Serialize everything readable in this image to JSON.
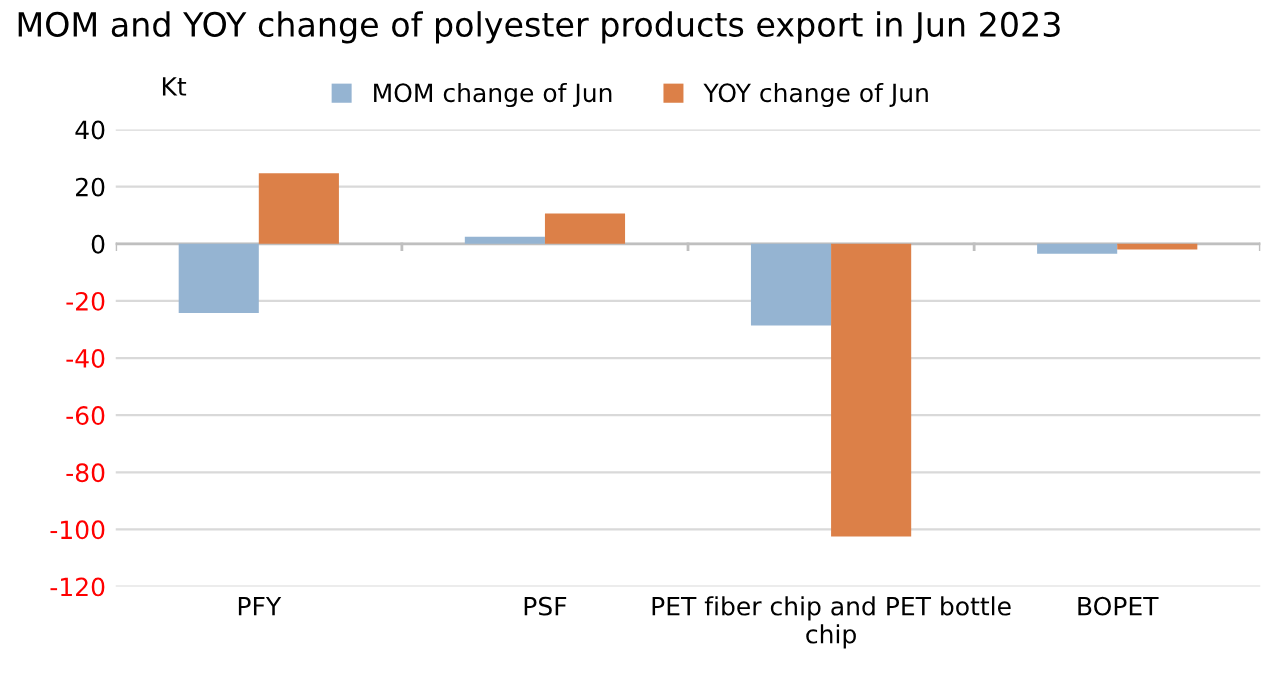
{
  "chart_data": {
    "type": "bar",
    "title": "MOM and YOY change of polyester products export in Jun 2023",
    "ylabel": "Kt",
    "categories": [
      "PFY",
      "PSF",
      "PET fiber chip and PET bottle chip",
      "BOPET"
    ],
    "series": [
      {
        "name": "MOM change of Jun",
        "color": "#95b4d2",
        "values": [
          -24.2,
          2.5,
          -28.6,
          -3.5
        ]
      },
      {
        "name": "YOY change of Jun",
        "color": "#dc8048",
        "values": [
          24.7,
          10.6,
          -102.5,
          -2
        ]
      }
    ],
    "ylim": [
      -120,
      40
    ],
    "yticks": [
      -120,
      -100,
      -80,
      -60,
      -40,
      -20,
      0,
      20,
      40
    ],
    "grid": "y",
    "legend": "top"
  }
}
